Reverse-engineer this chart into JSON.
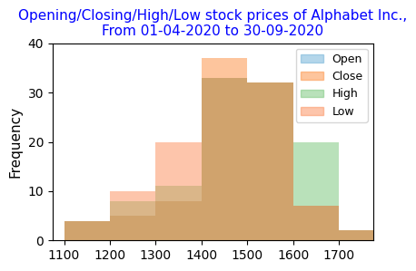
{
  "title": "Opening/Closing/High/Low stock prices of Alphabet Inc.,\nFrom 01-04-2020 to 30-09-2020",
  "title_color": "blue",
  "ylabel": "Frequency",
  "xlim": [
    1075,
    1775
  ],
  "ylim": [
    0,
    40
  ],
  "legend_labels": [
    "Open",
    "Close",
    "High",
    "Low"
  ],
  "colors": [
    "#6baed6",
    "#fd8d3c",
    "#74c476",
    "#fc8d59"
  ],
  "alpha": 0.5,
  "bin_edges": [
    1100,
    1200,
    1300,
    1400,
    1500,
    1600,
    1700,
    1800
  ],
  "counts_open": [
    4,
    5,
    8,
    33,
    32,
    7,
    2
  ],
  "counts_close": [
    4,
    5,
    8,
    37,
    32,
    7,
    2
  ],
  "counts_high": [
    4,
    8,
    11,
    33,
    32,
    20,
    2
  ],
  "counts_low": [
    4,
    10,
    20,
    33,
    32,
    7,
    2
  ]
}
